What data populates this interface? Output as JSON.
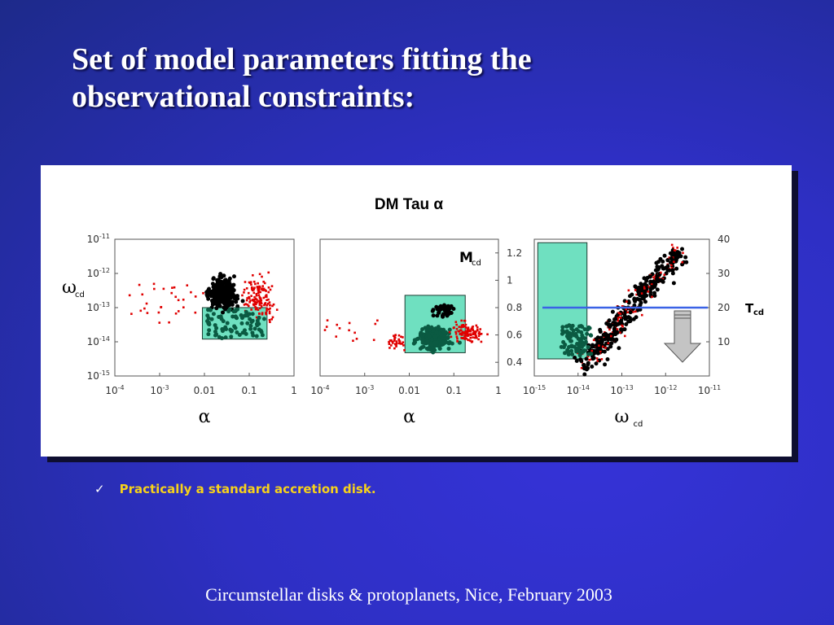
{
  "slide": {
    "title_line1": "Set of model parameters fitting the",
    "title_line2": "observational constraints:",
    "bullet": "Practically a standard accretion disk.",
    "bullet_mark": "✓",
    "footer": "Circumstellar disks & protoplanets, Nice, February 2003"
  },
  "colors": {
    "points_black": "#000000",
    "points_red": "#e00000",
    "points_in_box": "#0b5a42",
    "box_fill": "#6fe0c0",
    "tcd_line": "#3a62e6",
    "arrow": "#c4c4c4"
  },
  "chart_data": [
    {
      "type": "scatter",
      "title": "DM Tau α",
      "xlabel": "α",
      "ylabel": "ωcd",
      "x_scale": "log",
      "y_scale": "log",
      "xlim": [
        0.0001,
        1
      ],
      "ylim": [
        1e-15,
        1e-11
      ],
      "x_ticks": [
        "10-4",
        "10-3",
        "0.01",
        "0.1",
        "1"
      ],
      "y_ticks": [
        "10-11",
        "10-12",
        "10-13",
        "10-14",
        "10-15"
      ],
      "highlight_box": {
        "x": [
          0.009,
          0.25
        ],
        "y": [
          1.2e-14,
          1e-13
        ]
      }
    },
    {
      "type": "scatter",
      "xlabel": "α",
      "ylabel": "Mcd",
      "x_scale": "log",
      "y_scale": "linear",
      "xlim": [
        0.0001,
        1
      ],
      "ylim": [
        0.3,
        1.3
      ],
      "x_ticks": [
        "10-4",
        "10-3",
        "0.01",
        "0.1",
        "1"
      ],
      "y_ticks": [
        "1.2",
        "1",
        "0.8",
        "0.6",
        "0.4"
      ],
      "highlight_box": {
        "x": [
          0.008,
          0.18
        ],
        "y": [
          0.47,
          0.89
        ]
      }
    },
    {
      "type": "scatter",
      "xlabel": "ωcd",
      "ylabel": "Tcd",
      "x_scale": "log",
      "y_scale": "linear",
      "xlim": [
        1e-15,
        1e-11
      ],
      "ylim": [
        0,
        40
      ],
      "x_ticks": [
        "10-15",
        "10-14",
        "10-13",
        "10-12",
        "10-11"
      ],
      "y_ticks": [
        "40",
        "30",
        "20",
        "10"
      ],
      "tcd_line": 20,
      "tcd_label": "Tcd",
      "highlight_box": {
        "x": [
          1.2e-15,
          1.6e-14
        ],
        "y": [
          5,
          39
        ]
      }
    }
  ]
}
